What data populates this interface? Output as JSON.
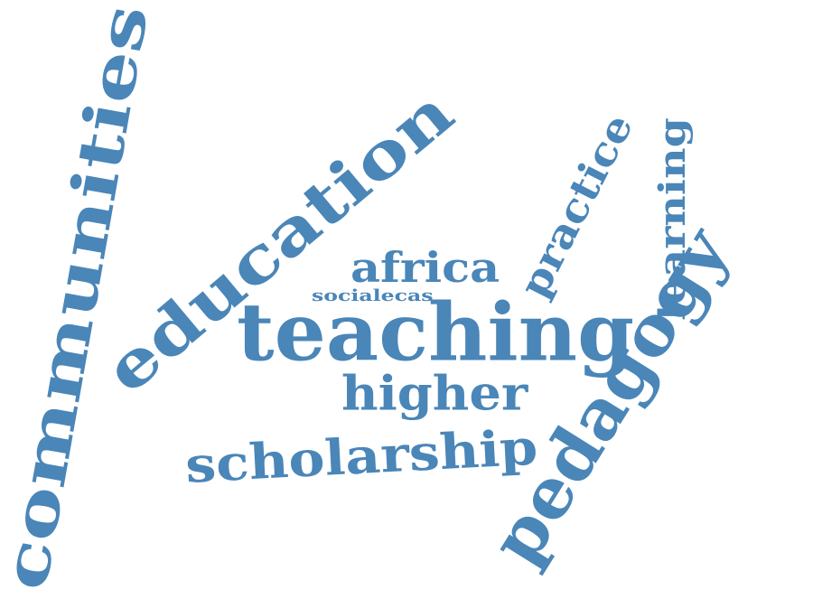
{
  "style": {
    "word_color": "#4a86b8",
    "background": "#ffffff"
  },
  "words": [
    {
      "id": "communities",
      "text": "communities"
    },
    {
      "id": "education",
      "text": "education"
    },
    {
      "id": "teaching",
      "text": "teaching"
    },
    {
      "id": "pedagogy",
      "text": "pedagogy"
    },
    {
      "id": "scholarship",
      "text": "scholarship"
    },
    {
      "id": "higher",
      "text": "higher"
    },
    {
      "id": "africa",
      "text": "africa"
    },
    {
      "id": "practice",
      "text": "practice"
    },
    {
      "id": "learning",
      "text": "learning"
    },
    {
      "id": "socialecas",
      "text": "socialecas"
    }
  ]
}
